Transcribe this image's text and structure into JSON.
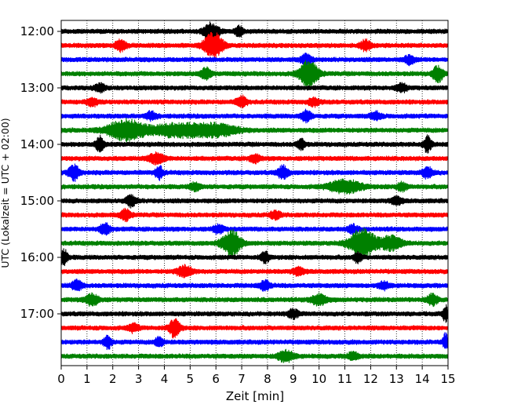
{
  "chart_data": {
    "type": "line",
    "xlabel": "Zeit  [min]",
    "ylabel": "UTC (Lokalzeit = UTC + 02:00)",
    "xlim": [
      0,
      15
    ],
    "x_ticks": [
      0,
      1,
      2,
      3,
      4,
      5,
      6,
      7,
      8,
      9,
      10,
      11,
      12,
      13,
      14,
      15
    ],
    "x_tick_labels": [
      "0",
      "1",
      "2",
      "3",
      "4",
      "5",
      "6",
      "7",
      "8",
      "9",
      "10",
      "11",
      "12",
      "13",
      "14",
      "15"
    ],
    "y_tick_labels": [
      "12:00",
      "13:00",
      "14:00",
      "15:00",
      "16:00",
      "17:00"
    ],
    "y_tick_rows": [
      0,
      4,
      8,
      12,
      16,
      20
    ],
    "grid": "vertical-dotted",
    "row_count": 24,
    "row_colors": [
      "#000000",
      "#ff0000",
      "#0000ff",
      "#008000"
    ],
    "series": [
      {
        "start": "12:00",
        "bursts": [
          [
            5.8,
            0.3,
            3
          ],
          [
            6.9,
            0.15,
            2
          ]
        ]
      },
      {
        "start": "12:15",
        "bursts": [
          [
            5.9,
            0.35,
            5
          ],
          [
            2.3,
            0.2,
            2
          ],
          [
            11.8,
            0.2,
            2
          ]
        ]
      },
      {
        "start": "12:30",
        "bursts": [
          [
            9.5,
            0.2,
            2
          ],
          [
            13.5,
            0.2,
            1.5
          ]
        ]
      },
      {
        "start": "12:45",
        "bursts": [
          [
            9.6,
            0.35,
            5
          ],
          [
            14.6,
            0.2,
            3
          ],
          [
            5.6,
            0.2,
            2
          ]
        ]
      },
      {
        "start": "13:00",
        "bursts": [
          [
            1.5,
            0.2,
            1.5
          ],
          [
            13.2,
            0.2,
            1.5
          ]
        ]
      },
      {
        "start": "13:15",
        "bursts": [
          [
            7.0,
            0.2,
            2
          ],
          [
            9.8,
            0.2,
            1.5
          ],
          [
            1.2,
            0.2,
            1.5
          ]
        ]
      },
      {
        "start": "13:30",
        "bursts": [
          [
            9.5,
            0.2,
            2
          ],
          [
            3.5,
            0.2,
            1.5
          ],
          [
            12.2,
            0.2,
            1.5
          ]
        ]
      },
      {
        "start": "13:45",
        "bursts": [
          [
            2.5,
            0.7,
            4
          ],
          [
            4.5,
            1.0,
            2.5
          ],
          [
            6.0,
            0.8,
            2.2
          ]
        ]
      },
      {
        "start": "14:00",
        "bursts": [
          [
            1.5,
            0.15,
            3
          ],
          [
            14.2,
            0.15,
            3
          ],
          [
            9.3,
            0.15,
            2
          ]
        ]
      },
      {
        "start": "14:15",
        "bursts": [
          [
            3.7,
            0.3,
            2
          ],
          [
            7.5,
            0.2,
            1.5
          ]
        ]
      },
      {
        "start": "14:30",
        "bursts": [
          [
            0.5,
            0.2,
            3
          ],
          [
            3.8,
            0.15,
            2.5
          ],
          [
            8.6,
            0.2,
            2.5
          ],
          [
            14.2,
            0.2,
            2
          ]
        ]
      },
      {
        "start": "14:45",
        "bursts": [
          [
            11.0,
            0.6,
            2.5
          ],
          [
            5.2,
            0.2,
            1.5
          ],
          [
            13.2,
            0.2,
            1.5
          ]
        ]
      },
      {
        "start": "15:00",
        "bursts": [
          [
            2.7,
            0.2,
            2
          ],
          [
            13.0,
            0.2,
            1.5
          ]
        ]
      },
      {
        "start": "15:15",
        "bursts": [
          [
            2.5,
            0.2,
            2
          ],
          [
            8.3,
            0.2,
            1.5
          ]
        ]
      },
      {
        "start": "15:30",
        "bursts": [
          [
            1.7,
            0.2,
            2
          ],
          [
            6.1,
            0.2,
            1.5
          ],
          [
            11.3,
            0.2,
            1.5
          ]
        ]
      },
      {
        "start": "15:45",
        "bursts": [
          [
            6.6,
            0.35,
            5
          ],
          [
            11.7,
            0.5,
            5.5
          ],
          [
            12.8,
            0.4,
            2.5
          ]
        ]
      },
      {
        "start": "16:00",
        "bursts": [
          [
            0.1,
            0.15,
            3
          ],
          [
            7.9,
            0.15,
            2
          ],
          [
            11.5,
            0.15,
            2
          ]
        ]
      },
      {
        "start": "16:15",
        "bursts": [
          [
            4.8,
            0.3,
            2
          ],
          [
            9.2,
            0.2,
            1.5
          ]
        ]
      },
      {
        "start": "16:30",
        "bursts": [
          [
            0.6,
            0.2,
            2
          ],
          [
            7.9,
            0.2,
            1.8
          ],
          [
            12.5,
            0.2,
            1.5
          ]
        ]
      },
      {
        "start": "16:45",
        "bursts": [
          [
            1.2,
            0.25,
            2.2
          ],
          [
            10.0,
            0.3,
            2
          ],
          [
            14.4,
            0.2,
            2
          ]
        ]
      },
      {
        "start": "17:00",
        "bursts": [
          [
            14.9,
            0.1,
            3
          ],
          [
            9.0,
            0.2,
            1.5
          ]
        ]
      },
      {
        "start": "17:15",
        "bursts": [
          [
            4.4,
            0.2,
            3.5
          ],
          [
            2.8,
            0.2,
            1.5
          ]
        ]
      },
      {
        "start": "17:30",
        "bursts": [
          [
            1.8,
            0.15,
            2.5
          ],
          [
            3.8,
            0.15,
            2
          ],
          [
            14.9,
            0.1,
            3
          ]
        ]
      },
      {
        "start": "17:45",
        "bursts": [
          [
            8.7,
            0.3,
            2.2
          ],
          [
            11.3,
            0.2,
            1.5
          ]
        ]
      }
    ]
  }
}
